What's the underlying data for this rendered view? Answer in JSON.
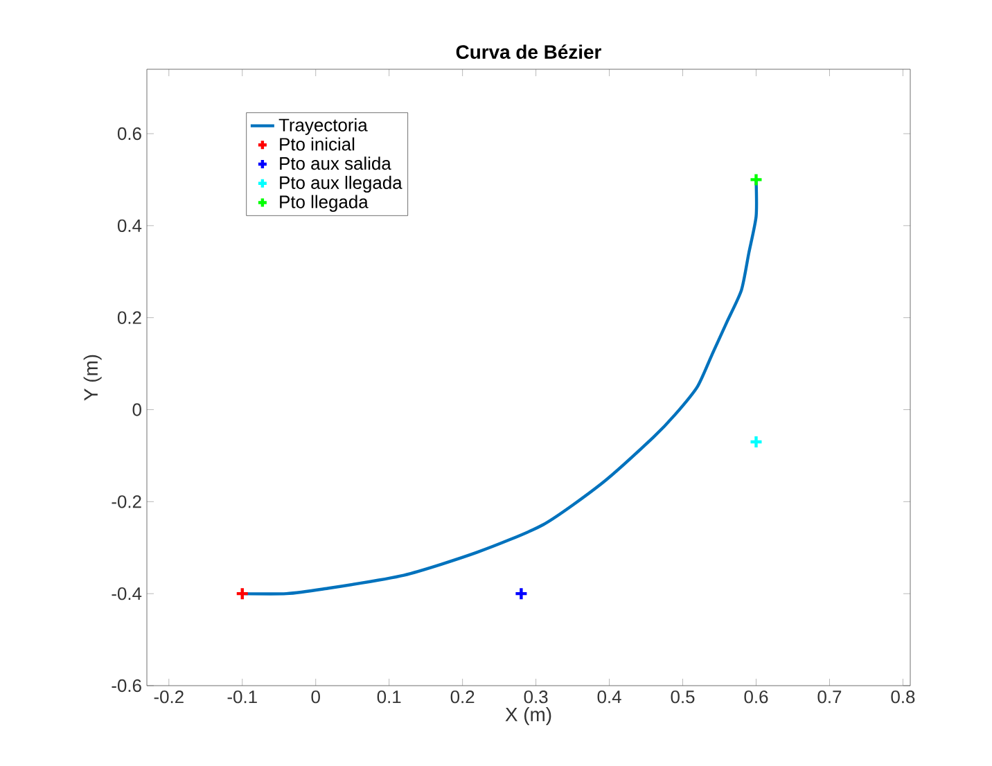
{
  "chart_data": {
    "type": "line",
    "title": "Curva de Bézier",
    "xlabel": "X (m)",
    "ylabel": "Y (m)",
    "xlim": [
      -0.23,
      0.81
    ],
    "ylim": [
      -0.6,
      0.74
    ],
    "xticks": [
      -0.2,
      -0.1,
      0,
      0.1,
      0.2,
      0.3,
      0.4,
      0.5,
      0.6,
      0.7,
      0.8
    ],
    "yticks": [
      -0.6,
      -0.4,
      -0.2,
      0,
      0.2,
      0.4,
      0.6
    ],
    "grid": false,
    "legend": "top left",
    "series": [
      {
        "name": "Trayectoria",
        "color": "#0072bd",
        "marker": "none",
        "line_style": "solid",
        "x": [
          -0.1,
          -0.04,
          0.01,
          0.12,
          0.22,
          0.31,
          0.39,
          0.46,
          0.49,
          0.52,
          0.54,
          0.56,
          0.58,
          0.59,
          0.6,
          0.6
        ],
        "values": [
          -0.4,
          -0.4,
          -0.39,
          -0.36,
          -0.31,
          -0.25,
          -0.16,
          -0.06,
          -0.01,
          0.05,
          0.12,
          0.19,
          0.26,
          0.34,
          0.42,
          0.5
        ]
      },
      {
        "name": "Pto inicial",
        "type": "scatter",
        "color": "#ff0000",
        "marker": "cross",
        "x": [
          -0.1
        ],
        "values": [
          -0.4
        ]
      },
      {
        "name": "Pto aux salida",
        "type": "scatter",
        "color": "#0000ff",
        "marker": "cross",
        "x": [
          0.28
        ],
        "values": [
          -0.4
        ]
      },
      {
        "name": "Pto aux llegada",
        "type": "scatter",
        "color": "#00ffff",
        "marker": "cross",
        "x": [
          0.6
        ],
        "values": [
          -0.07
        ]
      },
      {
        "name": "Pto llegada",
        "type": "scatter",
        "color": "#00ff00",
        "marker": "cross",
        "x": [
          0.6
        ],
        "values": [
          0.5
        ]
      }
    ]
  }
}
